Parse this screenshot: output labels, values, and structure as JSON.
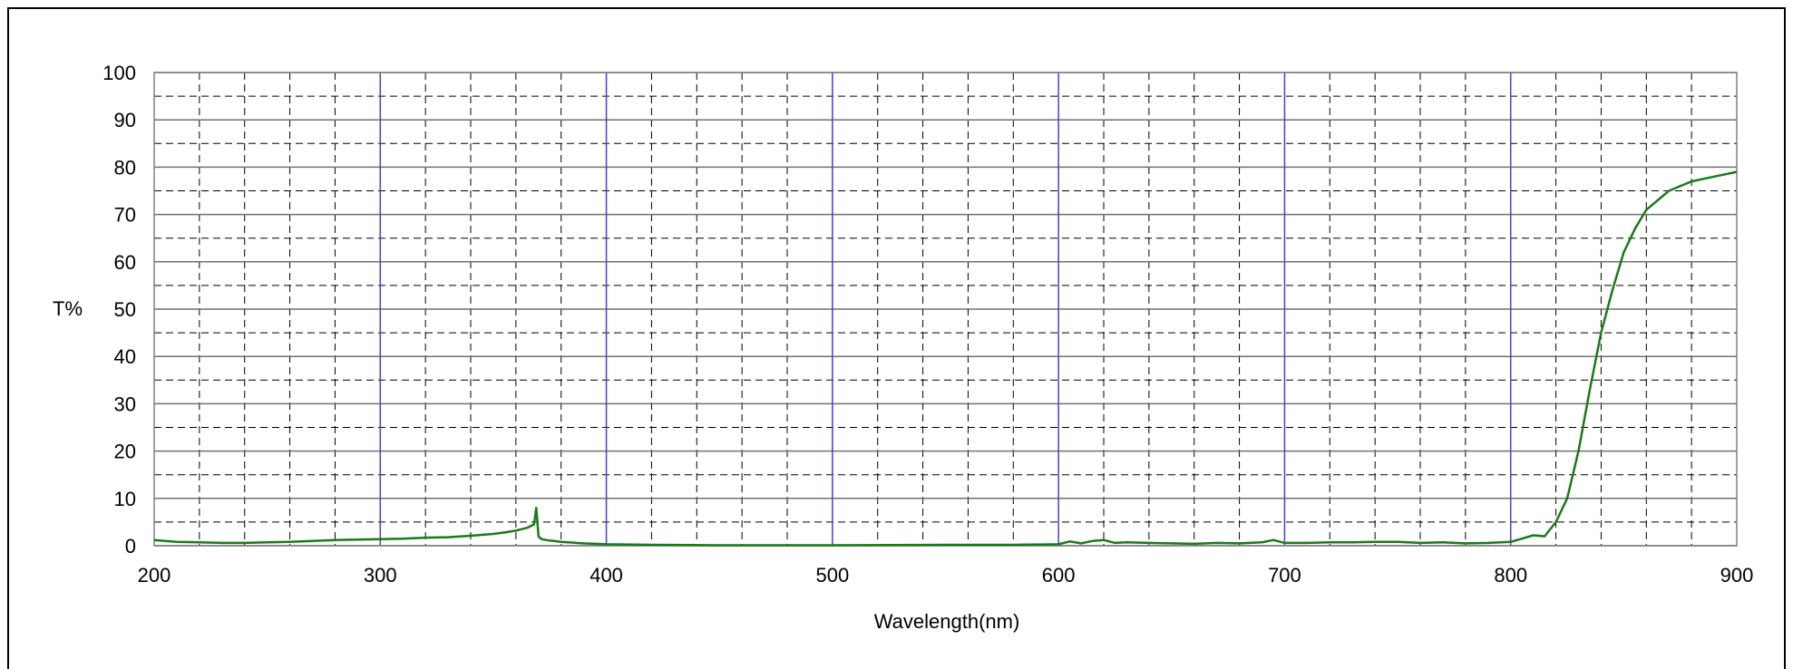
{
  "chart_data": {
    "type": "line",
    "title": "",
    "xlabel": "Wavelength(nm)",
    "ylabel": "T%",
    "xlim": [
      200,
      900
    ],
    "ylim": [
      0,
      100
    ],
    "x_ticks": [
      "200",
      "300",
      "400",
      "500",
      "600",
      "700",
      "800",
      "900"
    ],
    "y_ticks": [
      "0",
      "10",
      "20",
      "30",
      "40",
      "50",
      "60",
      "70",
      "80",
      "90",
      "100"
    ],
    "grid": true,
    "legend": "none",
    "colors": {
      "series": "#1a7a1a",
      "major_vertical_grid": "#4040e0",
      "grid": "#000000"
    },
    "series": [
      {
        "x": [
          200,
          210,
          220,
          230,
          240,
          250,
          260,
          270,
          280,
          290,
          300,
          310,
          320,
          330,
          340,
          350,
          355,
          360,
          365,
          368,
          369,
          370,
          371,
          372,
          375,
          380,
          390,
          400,
          420,
          450,
          500,
          550,
          580,
          600,
          605,
          610,
          615,
          620,
          625,
          630,
          640,
          650,
          660,
          670,
          680,
          690,
          695,
          700,
          710,
          720,
          730,
          740,
          750,
          760,
          770,
          780,
          790,
          800,
          805,
          810,
          815,
          820,
          825,
          830,
          835,
          840,
          845,
          850,
          855,
          860,
          870,
          880,
          890,
          900
        ],
        "y": [
          1.2,
          0.8,
          0.7,
          0.6,
          0.6,
          0.7,
          0.8,
          1.0,
          1.2,
          1.3,
          1.4,
          1.5,
          1.7,
          1.8,
          2.1,
          2.5,
          2.8,
          3.2,
          3.8,
          4.5,
          8.0,
          2.0,
          1.5,
          1.3,
          1.1,
          0.8,
          0.5,
          0.3,
          0.2,
          0.1,
          0.1,
          0.2,
          0.2,
          0.3,
          0.9,
          0.5,
          1.0,
          1.2,
          0.6,
          0.7,
          0.6,
          0.5,
          0.4,
          0.6,
          0.5,
          0.7,
          1.2,
          0.6,
          0.6,
          0.7,
          0.7,
          0.8,
          0.8,
          0.6,
          0.7,
          0.5,
          0.6,
          0.8,
          1.5,
          2.2,
          2.0,
          5.0,
          10.0,
          20.0,
          33.0,
          45.0,
          54.0,
          62.0,
          67.0,
          71.0,
          75.0,
          77.0,
          78.0,
          79.0
        ]
      }
    ]
  }
}
